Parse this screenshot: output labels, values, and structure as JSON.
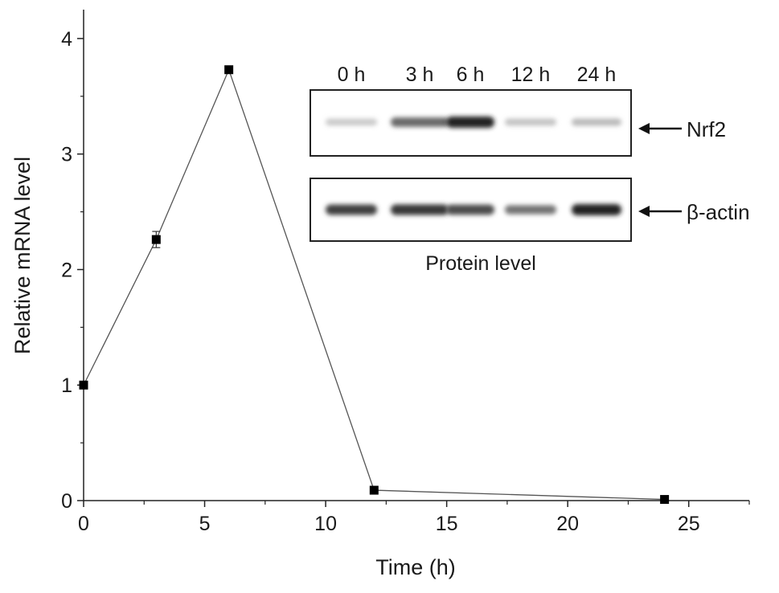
{
  "chart_data": {
    "type": "line",
    "xlabel": "Time (h)",
    "ylabel": "Relative mRNA level",
    "xlim": [
      0,
      27.5
    ],
    "ylim": [
      0,
      4.25
    ],
    "xticks": [
      0,
      5,
      10,
      15,
      20,
      25
    ],
    "yticks": [
      0,
      1,
      2,
      3,
      4
    ],
    "x_tick_labels": [
      "0",
      "5",
      "10",
      "15",
      "20",
      "25"
    ],
    "y_tick_labels": [
      "0",
      "1",
      "2",
      "3",
      "4"
    ],
    "grid": false,
    "series": [
      {
        "x": [
          0,
          3,
          6,
          12,
          24
        ],
        "values": [
          1.0,
          2.26,
          3.73,
          0.09,
          0.01
        ],
        "errors": [
          0.03,
          0.07,
          0.03,
          0.02,
          0.01
        ],
        "marker": "square",
        "color": "#000000"
      }
    ]
  },
  "inset": {
    "lanes": [
      "0 h",
      "3 h",
      "6 h",
      "12 h",
      "24 h"
    ],
    "blots": [
      {
        "label": "Nrf2",
        "band_intensity": [
          0.12,
          0.6,
          0.95,
          0.15,
          0.2
        ]
      },
      {
        "label": "β-actin",
        "band_intensity": [
          0.8,
          0.85,
          0.75,
          0.55,
          0.95
        ]
      }
    ],
    "caption": "Protein level"
  }
}
